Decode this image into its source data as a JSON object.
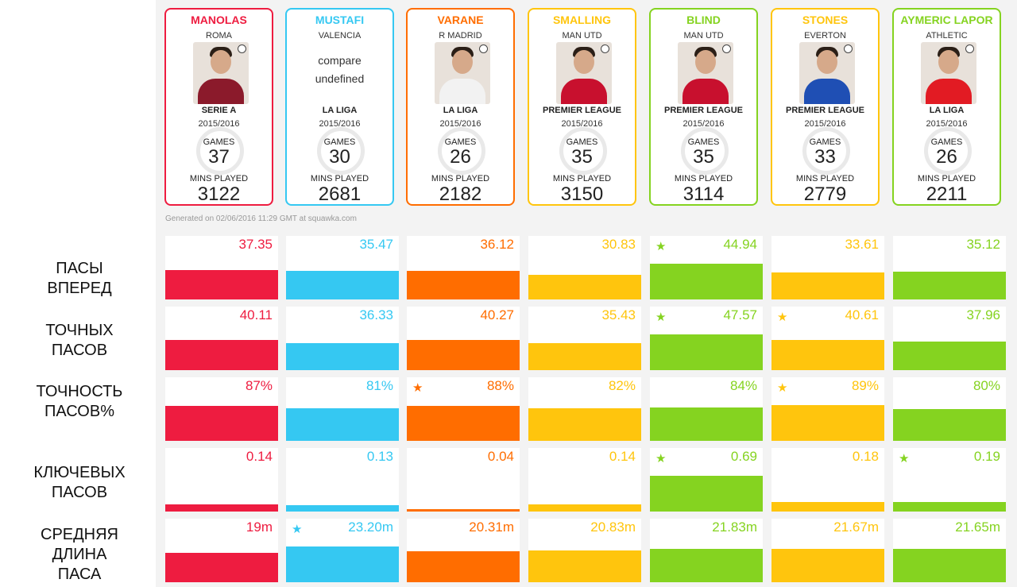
{
  "colors": {
    "manolas": "#ee1c40",
    "mustafi": "#35c8f2",
    "varane": "#ff6d00",
    "smalling": "#ffc50d",
    "blind": "#85d320",
    "stones": "#ffc50d",
    "laporte": "#85d320"
  },
  "players": [
    {
      "name": "MANOLAS",
      "club": "ROMA",
      "league": "SERIE A",
      "season": "2015/2016",
      "games_label": "GAMES",
      "games": "37",
      "mins_label": "MINS PLAYED",
      "mins": "3122",
      "color": "#ee1c40",
      "shirt": "#8b1a2b"
    },
    {
      "name": "MUSTAFI",
      "club": "VALENCIA",
      "league": "LA LIGA",
      "season": "2015/2016",
      "games_label": "GAMES",
      "games": "30",
      "mins_label": "MINS PLAYED",
      "mins": "2681",
      "color": "#35c8f2",
      "shirt": "#ffffff",
      "overlay1": "compare",
      "overlay2": "undefined"
    },
    {
      "name": "VARANE",
      "club": "R MADRID",
      "league": "LA LIGA",
      "season": "2015/2016",
      "games_label": "GAMES",
      "games": "26",
      "mins_label": "MINS PLAYED",
      "mins": "2182",
      "color": "#ff6d00",
      "shirt": "#f2f2f2"
    },
    {
      "name": "SMALLING",
      "club": "MAN UTD",
      "league": "PREMIER LEAGUE",
      "season": "2015/2016",
      "games_label": "GAMES",
      "games": "35",
      "mins_label": "MINS PLAYED",
      "mins": "3150",
      "color": "#ffc50d",
      "shirt": "#c8102e"
    },
    {
      "name": "BLIND",
      "club": "MAN UTD",
      "league": "PREMIER LEAGUE",
      "season": "2015/2016",
      "games_label": "GAMES",
      "games": "35",
      "mins_label": "MINS PLAYED",
      "mins": "3114",
      "color": "#85d320",
      "shirt": "#c8102e"
    },
    {
      "name": "STONES",
      "club": "EVERTON",
      "league": "PREMIER LEAGUE",
      "season": "2015/2016",
      "games_label": "GAMES",
      "games": "33",
      "mins_label": "MINS PLAYED",
      "mins": "2779",
      "color": "#ffc50d",
      "shirt": "#1f4fb4"
    },
    {
      "name": "AYMERIC LAPOR",
      "club": "ATHLETIC",
      "league": "LA LIGA",
      "season": "2015/2016",
      "games_label": "GAMES",
      "games": "26",
      "mins_label": "MINS PLAYED",
      "mins": "2211",
      "color": "#85d320",
      "shirt": "#e21b23"
    }
  ],
  "generated_text": "Generated on 02/06/2016 11:29 GMT at squawka.com",
  "chart_data": {
    "type": "bar",
    "categories": [
      "MANOLAS",
      "MUSTAFI",
      "VARANE",
      "SMALLING",
      "BLIND",
      "STONES",
      "AYMERIC LAPOR"
    ],
    "series": [
      {
        "name": "ПАСЫ\nВПЕРЕД",
        "values": [
          37.35,
          35.47,
          36.12,
          30.83,
          44.94,
          33.61,
          35.12
        ],
        "labels": [
          "37.35",
          "35.47",
          "36.12",
          "30.83",
          "44.94",
          "33.61",
          "35.12"
        ],
        "stars": [
          false,
          false,
          false,
          false,
          true,
          false,
          false
        ]
      },
      {
        "name": "ТОЧНЫХ\nПАСОВ",
        "values": [
          40.11,
          36.33,
          40.27,
          35.43,
          47.57,
          40.61,
          37.96
        ],
        "labels": [
          "40.11",
          "36.33",
          "40.27",
          "35.43",
          "47.57",
          "40.61",
          "37.96"
        ],
        "stars": [
          false,
          false,
          false,
          false,
          true,
          true,
          false
        ]
      },
      {
        "name": "ТОЧНОСТЬ\nПАСОВ%",
        "values": [
          87,
          81,
          88,
          82,
          84,
          89,
          80
        ],
        "labels": [
          "87%",
          "81%",
          "88%",
          "82%",
          "84%",
          "89%",
          "80%"
        ],
        "stars": [
          false,
          false,
          true,
          false,
          false,
          true,
          false
        ]
      },
      {
        "name": "КЛЮЧЕВЫХ\nПАСОВ",
        "values": [
          0.14,
          0.13,
          0.04,
          0.14,
          0.69,
          0.18,
          0.19
        ],
        "labels": [
          "0.14",
          "0.13",
          "0.04",
          "0.14",
          "0.69",
          "0.18",
          "0.19"
        ],
        "stars": [
          false,
          false,
          false,
          false,
          true,
          false,
          true
        ]
      },
      {
        "name": "СРЕДНЯЯ\nДЛИНА\nПАСА",
        "values": [
          19,
          23.2,
          20.31,
          20.83,
          21.83,
          21.67,
          21.65
        ],
        "labels": [
          "19m",
          "23.20m",
          "20.31m",
          "20.83m",
          "21.83m",
          "21.67m",
          "21.65m"
        ],
        "stars": [
          false,
          true,
          false,
          false,
          false,
          false,
          false
        ]
      }
    ],
    "star_symbol": "★"
  }
}
